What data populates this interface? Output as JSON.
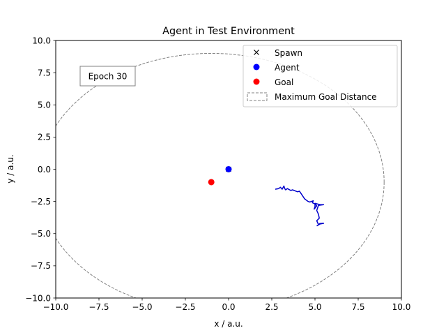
{
  "chart_data": {
    "type": "scatter",
    "title": "Agent in Test Environment",
    "xlabel": "x / a.u.",
    "ylabel": "y / a.u.",
    "xlim": [
      -10,
      10
    ],
    "ylim": [
      -10,
      10
    ],
    "grid": false,
    "legend_placement": "top-right",
    "annotation": "Epoch 30",
    "x_ticks": [
      -10.0,
      -7.5,
      -5.0,
      -2.5,
      0.0,
      2.5,
      5.0,
      7.5,
      10.0
    ],
    "y_ticks": [
      -10.0,
      -7.5,
      -5.0,
      -2.5,
      0.0,
      2.5,
      5.0,
      7.5,
      10.0
    ],
    "x_tick_labels": [
      "−10.0",
      "−7.5",
      "−5.0",
      "−2.5",
      "0.0",
      "2.5",
      "5.0",
      "7.5",
      "10.0"
    ],
    "y_tick_labels": [
      "−10.0",
      "−7.5",
      "−5.0",
      "−2.5",
      "0.0",
      "2.5",
      "5.0",
      "7.5",
      "10.0"
    ],
    "colors": {
      "agent": "#0000ff",
      "path": "#0000cc",
      "goal": "#ff0000",
      "boundary": "#808080",
      "spawn": "#000000"
    },
    "spawn": {
      "name": "Spawn",
      "x": 0.0,
      "y": 0.0
    },
    "agent": {
      "name": "Agent",
      "x": 0.0,
      "y": 0.0
    },
    "goal": {
      "name": "Goal",
      "x": -1.0,
      "y": -1.0
    },
    "max_goal_distance": {
      "name": "Maximum Goal Distance",
      "center": [
        -1.0,
        -1.0
      ],
      "radius": 10.0
    },
    "agent_path": {
      "x": [
        2.7,
        2.9,
        3.0,
        3.1,
        3.2,
        3.25,
        3.3,
        3.35,
        3.4,
        3.6,
        3.7,
        3.9,
        4.0,
        4.1,
        4.2,
        4.3,
        4.4,
        4.5,
        4.6,
        4.7,
        4.8,
        4.9,
        4.85,
        5.0,
        5.0,
        4.95,
        5.1,
        5.0,
        5.3,
        5.5,
        5.2,
        5.1,
        5.2,
        5.25,
        5.1,
        5.2,
        5.3,
        5.2,
        5.4,
        5.5,
        5.3,
        5.1
      ],
      "y": [
        -1.55,
        -1.5,
        -1.4,
        -1.55,
        -1.3,
        -1.5,
        -1.6,
        -1.55,
        -1.5,
        -1.65,
        -1.6,
        -1.7,
        -1.75,
        -1.7,
        -1.9,
        -2.1,
        -2.3,
        -2.4,
        -2.5,
        -2.55,
        -2.5,
        -2.45,
        -2.6,
        -2.7,
        -2.9,
        -3.1,
        -2.85,
        -2.65,
        -2.75,
        -2.75,
        -2.8,
        -3.2,
        -3.5,
        -3.8,
        -4.0,
        -4.3,
        -4.2,
        -4.3,
        -4.2,
        -4.2,
        -4.25,
        -4.4
      ]
    }
  }
}
